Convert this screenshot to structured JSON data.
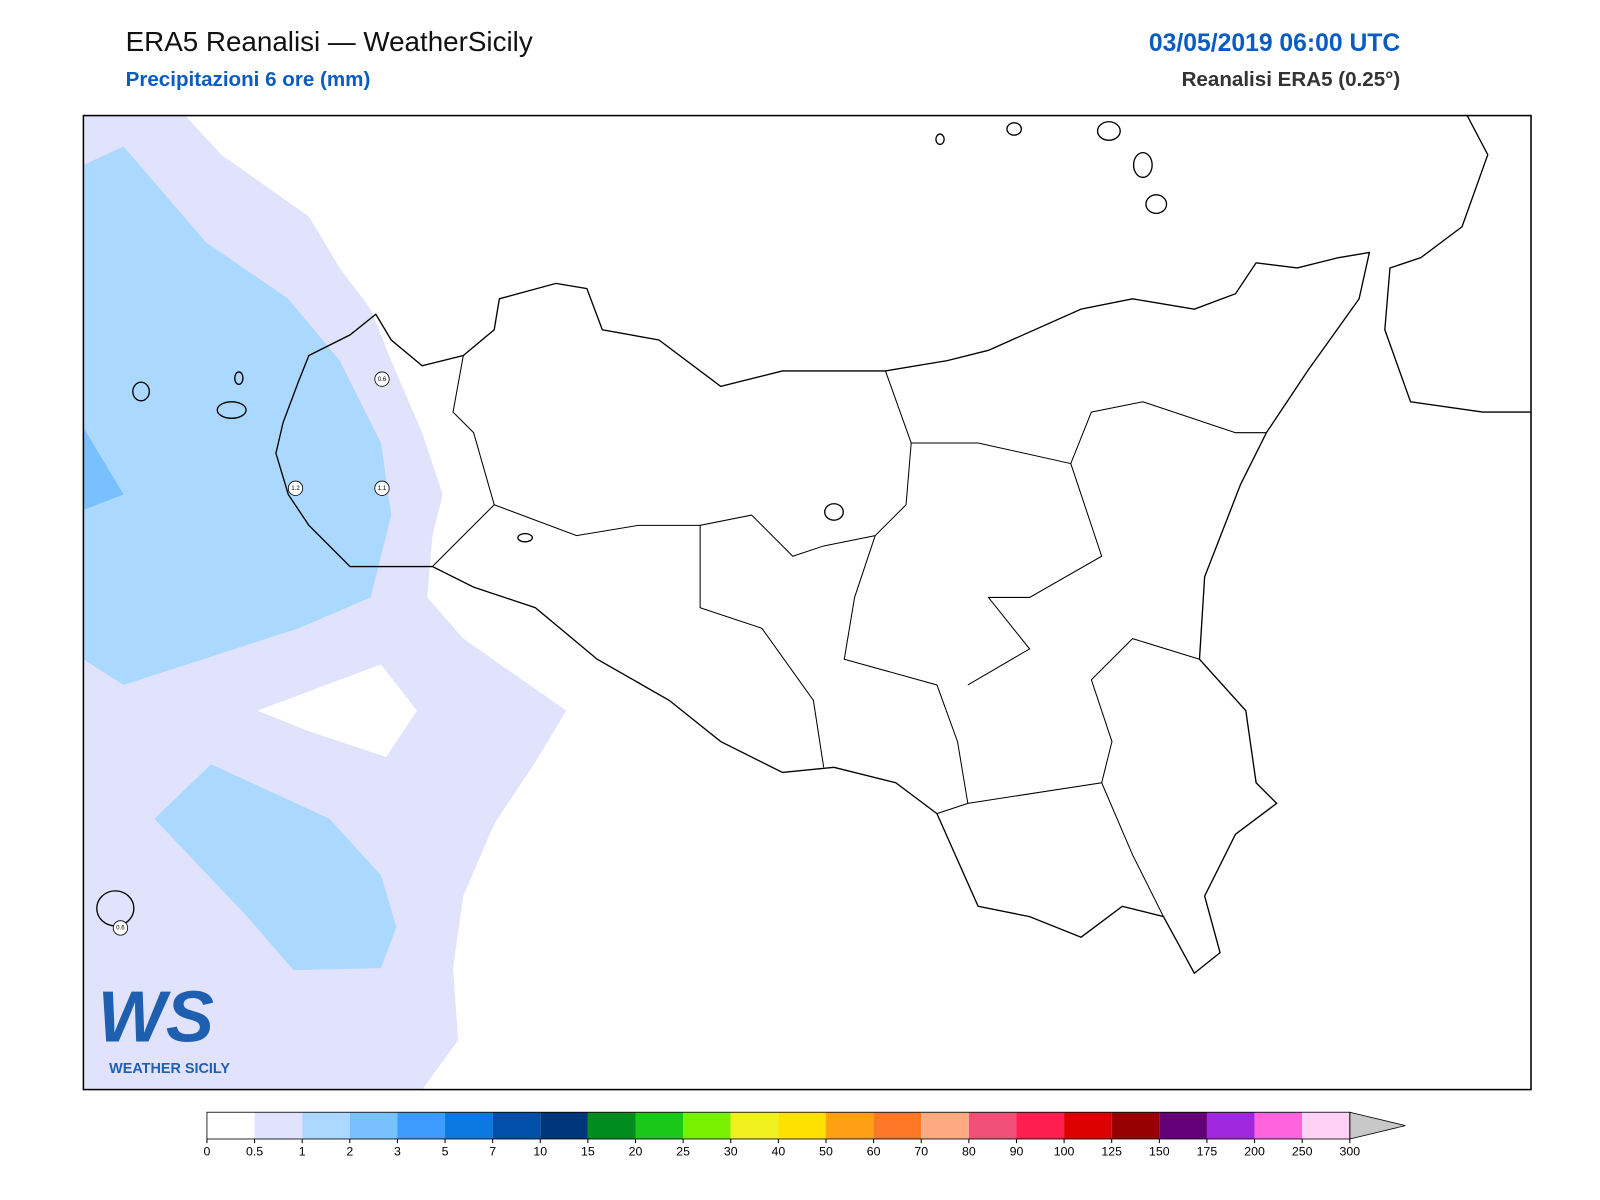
{
  "header": {
    "title": "ERA5 Reanalisi — WeatherSicily",
    "subtitle": "Precipitazioni 6 ore (mm)",
    "date": "03/05/2019 06:00 UTC",
    "source": "Reanalisi ERA5 (0.25°)"
  },
  "map": {
    "point_labels": [
      0.6,
      1.2,
      1.1,
      0.6
    ]
  },
  "logo": {
    "mark": "WS",
    "name": "WEATHER SICILY"
  },
  "colorbar": {
    "ticks": [
      0,
      0.5,
      1,
      2,
      3,
      5,
      7,
      10,
      15,
      20,
      25,
      30,
      40,
      50,
      60,
      70,
      80,
      90,
      100,
      125,
      150,
      175,
      200,
      250,
      300
    ],
    "colors": [
      "#ffffff",
      "#e1e3fd",
      "#aad8ff",
      "#78c0ff",
      "#3c9bff",
      "#0a78e0",
      "#0050aa",
      "#00377a",
      "#008c1e",
      "#19c819",
      "#78f000",
      "#f0f01e",
      "#ffe100",
      "#ffa014",
      "#ff7828",
      "#ffaa82",
      "#f05078",
      "#ff1e50",
      "#dc0000",
      "#960000",
      "#640078",
      "#a028dc",
      "#ff64dc",
      "#ffd2f5"
    ],
    "over_color": "#c8c8c8"
  }
}
